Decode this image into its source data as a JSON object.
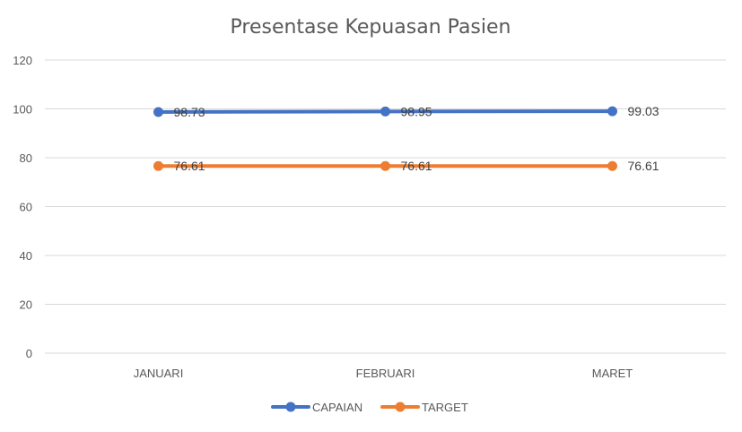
{
  "chart_data": {
    "type": "line",
    "title": "Presentase Kepuasan Pasien",
    "categories": [
      "JANUARI",
      "FEBRUARI",
      "MARET"
    ],
    "series": [
      {
        "name": "CAPAIAN",
        "values": [
          98.73,
          98.95,
          99.03
        ],
        "labels": [
          "98.73",
          "98.95",
          "99.03"
        ],
        "color": "#4472C4"
      },
      {
        "name": "TARGET",
        "values": [
          76.61,
          76.61,
          76.61
        ],
        "labels": [
          "76.61",
          "76.61",
          "76.61"
        ],
        "color": "#ED7D31"
      }
    ],
    "y_ticks": [
      "0",
      "20",
      "40",
      "60",
      "80",
      "100",
      "120"
    ],
    "ylim": [
      0,
      120
    ],
    "grid": true,
    "legend_position": "bottom",
    "gridline_color": "#D9D9D9"
  }
}
